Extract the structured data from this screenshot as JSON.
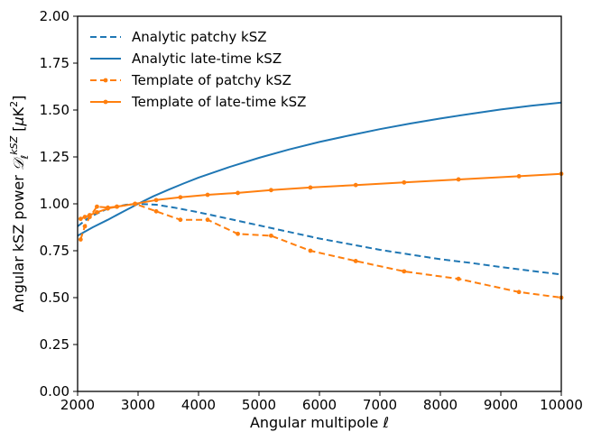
{
  "chart_data": {
    "type": "line",
    "xlabel": "Angular multipole ℓ",
    "ylabel": "Angular kSZ power D_ℓ^kSZ [μK²]",
    "xlim": [
      2000,
      10000
    ],
    "ylim": [
      0.0,
      2.0
    ],
    "xticks": [
      "2000",
      "3000",
      "4000",
      "5000",
      "6000",
      "7000",
      "8000",
      "9000",
      "10000"
    ],
    "yticks": [
      "0.00",
      "0.25",
      "0.50",
      "0.75",
      "1.00",
      "1.25",
      "1.50",
      "1.75",
      "2.00"
    ],
    "grid": false,
    "legend_position": "top-left",
    "series": [
      {
        "name": "Analytic patchy kSZ",
        "color": "#1f77b4",
        "style": "dashed",
        "markers": false,
        "x": [
          2000,
          2200,
          2500,
          2800,
          3000,
          3300,
          3600,
          4000,
          4500,
          5000,
          5500,
          6000,
          6500,
          7000,
          7500,
          8000,
          8500,
          9000,
          9500,
          10000
        ],
        "y": [
          0.88,
          0.93,
          0.975,
          0.995,
          1.0,
          0.995,
          0.98,
          0.955,
          0.92,
          0.885,
          0.85,
          0.815,
          0.785,
          0.755,
          0.73,
          0.705,
          0.685,
          0.663,
          0.643,
          0.623
        ]
      },
      {
        "name": "Analytic late-time kSZ",
        "color": "#1f77b4",
        "style": "solid",
        "markers": false,
        "x": [
          2000,
          2250,
          2500,
          2750,
          3000,
          3250,
          3500,
          3750,
          4000,
          4500,
          5000,
          5500,
          6000,
          6500,
          7000,
          7500,
          8000,
          8500,
          9000,
          9500,
          10000
        ],
        "y": [
          0.83,
          0.875,
          0.915,
          0.958,
          1.0,
          1.04,
          1.075,
          1.108,
          1.14,
          1.195,
          1.245,
          1.29,
          1.33,
          1.365,
          1.398,
          1.428,
          1.455,
          1.48,
          1.503,
          1.523,
          1.54
        ]
      },
      {
        "name": "Template of patchy kSZ",
        "color": "#ff7f0e",
        "style": "dashed",
        "markers": true,
        "x": [
          2050,
          2120,
          2200,
          2320,
          2500,
          2650,
          2950,
          3300,
          3700,
          4150,
          4650,
          5200,
          5850,
          6600,
          7400,
          8300,
          9300,
          10000
        ],
        "y": [
          0.81,
          0.88,
          0.93,
          0.985,
          0.98,
          0.985,
          1.0,
          0.96,
          0.915,
          0.915,
          0.84,
          0.83,
          0.75,
          0.695,
          0.64,
          0.6,
          0.53,
          0.5
        ]
      },
      {
        "name": "Template of late-time kSZ",
        "color": "#ff7f0e",
        "style": "solid",
        "markers": true,
        "x": [
          2050,
          2120,
          2200,
          2320,
          2500,
          2650,
          2950,
          3300,
          3700,
          4150,
          4650,
          5200,
          5850,
          6600,
          7400,
          8300,
          9300,
          10000
        ],
        "y": [
          0.92,
          0.93,
          0.94,
          0.955,
          0.975,
          0.985,
          1.0,
          1.02,
          1.035,
          1.048,
          1.058,
          1.073,
          1.087,
          1.1,
          1.114,
          1.13,
          1.147,
          1.16
        ]
      }
    ]
  }
}
